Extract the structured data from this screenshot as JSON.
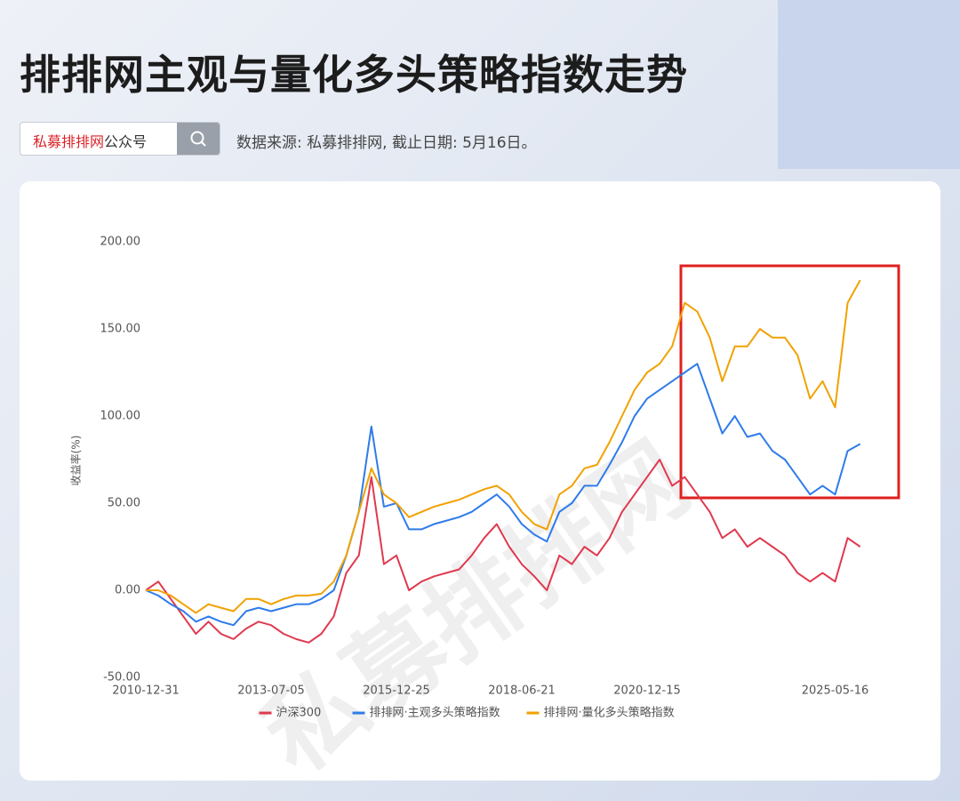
{
  "header": {
    "title": "排排网主观与量化多头策略指数走势",
    "search_brand": "私募排排网",
    "search_suffix": "公众号",
    "source": "数据来源: 私募排排网, 截止日期: 5月16日。"
  },
  "chart_data": {
    "type": "line",
    "watermark": "私募排排网",
    "ylabel": "收益率(%)",
    "categories": [
      "2010-12-31",
      null,
      null,
      null,
      null,
      null,
      null,
      null,
      null,
      null,
      "2013-07-05",
      null,
      null,
      null,
      null,
      null,
      null,
      null,
      null,
      null,
      "2015-12-25",
      null,
      null,
      null,
      null,
      null,
      null,
      null,
      null,
      null,
      "2018-06-21",
      null,
      null,
      null,
      null,
      null,
      null,
      null,
      null,
      null,
      "2020-12-15",
      null,
      null,
      null,
      null,
      null,
      null,
      null,
      null,
      null,
      null,
      null,
      null,
      null,
      null,
      "2025-05-16",
      null,
      null
    ],
    "series": [
      {
        "name": "沪深300",
        "color": "#e0394f",
        "values": [
          0,
          5,
          -5,
          -15,
          -25,
          -18,
          -25,
          -28,
          -22,
          -18,
          -20,
          -25,
          -28,
          -30,
          -25,
          -15,
          10,
          20,
          65,
          15,
          20,
          0,
          5,
          8,
          10,
          12,
          20,
          30,
          38,
          25,
          15,
          8,
          0,
          20,
          15,
          25,
          20,
          30,
          45,
          55,
          65,
          75,
          60,
          65,
          55,
          45,
          30,
          35,
          25,
          30,
          25,
          20,
          10,
          5,
          10,
          5,
          30,
          25
        ]
      },
      {
        "name": "排排网·主观多头策略指数",
        "color": "#2f7bea",
        "values": [
          0,
          -3,
          -8,
          -12,
          -18,
          -15,
          -18,
          -20,
          -12,
          -10,
          -12,
          -10,
          -8,
          -8,
          -5,
          0,
          20,
          45,
          94,
          48,
          50,
          35,
          35,
          38,
          40,
          42,
          45,
          50,
          55,
          48,
          38,
          32,
          28,
          45,
          50,
          60,
          60,
          72,
          85,
          100,
          110,
          115,
          120,
          125,
          130,
          110,
          90,
          100,
          88,
          90,
          80,
          75,
          65,
          55,
          60,
          55,
          80,
          84
        ]
      },
      {
        "name": "排排网·量化多头策略指数",
        "color": "#f0a202",
        "values": [
          0,
          0,
          -3,
          -8,
          -13,
          -8,
          -10,
          -12,
          -5,
          -5,
          -8,
          -5,
          -3,
          -3,
          -2,
          5,
          20,
          45,
          70,
          55,
          50,
          42,
          45,
          48,
          50,
          52,
          55,
          58,
          60,
          55,
          45,
          38,
          35,
          55,
          60,
          70,
          72,
          85,
          100,
          115,
          125,
          130,
          140,
          165,
          160,
          145,
          120,
          140,
          140,
          150,
          145,
          145,
          135,
          110,
          120,
          105,
          165,
          178
        ]
      }
    ],
    "ylim": [
      -50,
      200
    ],
    "yticks": [
      {
        "value": -50,
        "label": "-50.00"
      },
      {
        "value": 0,
        "label": "0.00"
      },
      {
        "value": 50,
        "label": "50.00"
      },
      {
        "value": 100,
        "label": "100.00"
      },
      {
        "value": 150,
        "label": "150.00"
      },
      {
        "value": 200,
        "label": "200.00"
      }
    ],
    "grid": false,
    "legend": "bottom"
  }
}
